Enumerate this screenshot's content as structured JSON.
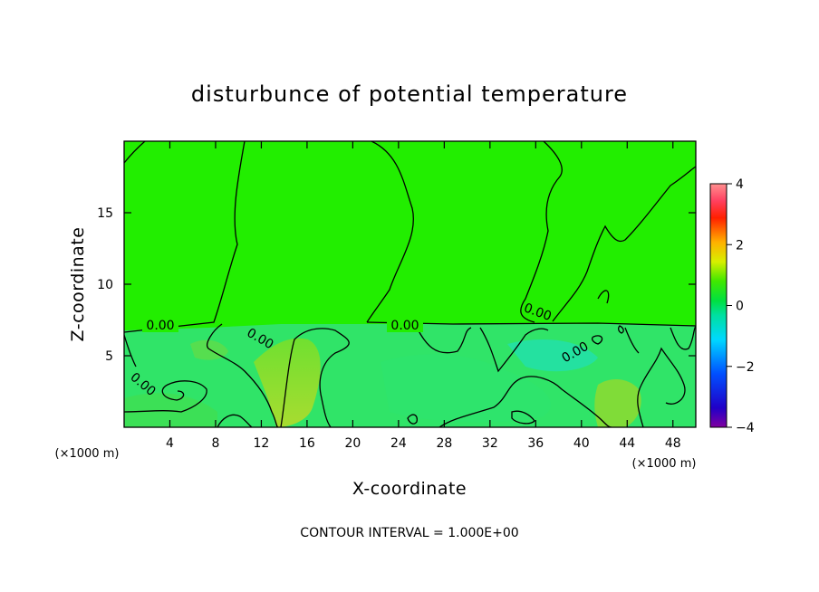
{
  "chart_data": {
    "type": "heatmap",
    "title": "disturbunce of potential temperature",
    "xlabel": "X-coordinate",
    "ylabel": "Z-coordinate",
    "x_unit": "(×1000 m)",
    "z_unit": "(×1000 m)",
    "xlim": [
      0,
      50
    ],
    "ylim": [
      0,
      20
    ],
    "xticks": [
      4,
      8,
      12,
      16,
      20,
      24,
      28,
      32,
      36,
      40,
      44,
      48
    ],
    "yticks": [
      5,
      10,
      15
    ],
    "colorbar": {
      "min": -4,
      "max": 4,
      "ticks": [
        4,
        2,
        0,
        -2,
        -4
      ]
    },
    "contour_interval_text": "CONTOUR INTERVAL = 1.000E+00",
    "contour_labels": [
      "0.00",
      "0.00",
      "0.00",
      "0.00",
      "0.00",
      "0.00",
      "0.00"
    ]
  },
  "colors": {
    "field_neutral": "#22ee00",
    "field_negative": "#33e27a",
    "field_positive": "#88dd22"
  }
}
